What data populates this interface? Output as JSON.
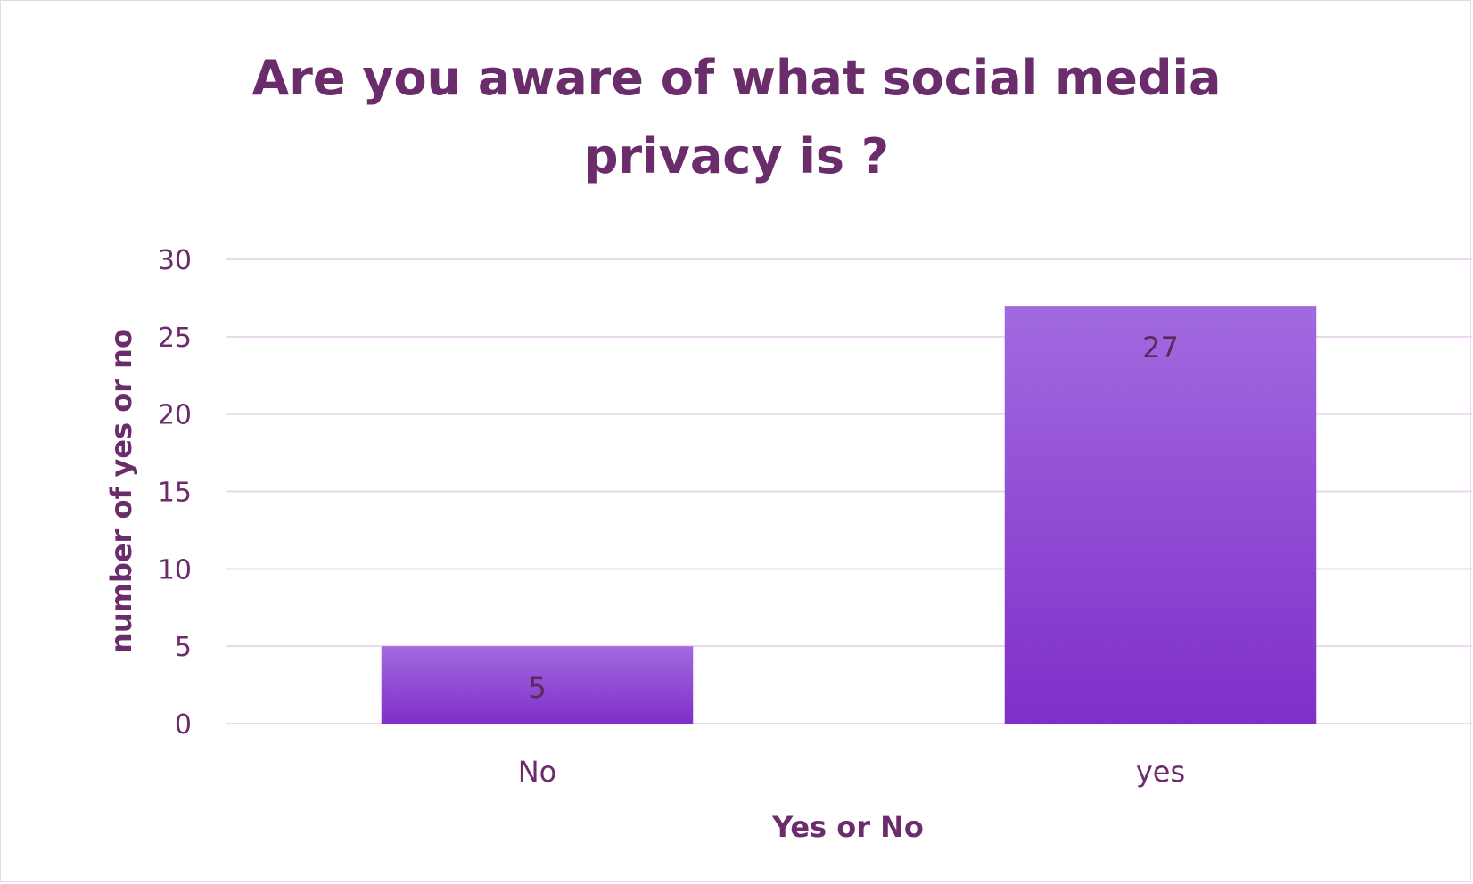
{
  "chart_data": {
    "type": "bar",
    "title_lines": [
      "Are you aware of what social media",
      "privacy is ?"
    ],
    "categories": [
      "No",
      "yes"
    ],
    "values": [
      5,
      27
    ],
    "data_labels": [
      "5",
      "27"
    ],
    "xlabel": "Yes or No",
    "ylabel": "number of yes or no",
    "ylim": [
      0,
      30
    ],
    "yticks": [
      0,
      5,
      10,
      15,
      20,
      25,
      30
    ],
    "grid": true,
    "legend": "none",
    "colors": {
      "bar_top": "#a36ae0",
      "bar_bottom": "#7e2fc8",
      "gridline": "#ecd8ee",
      "text": "#6b2c6b",
      "frame": "#e6d6ee"
    }
  }
}
